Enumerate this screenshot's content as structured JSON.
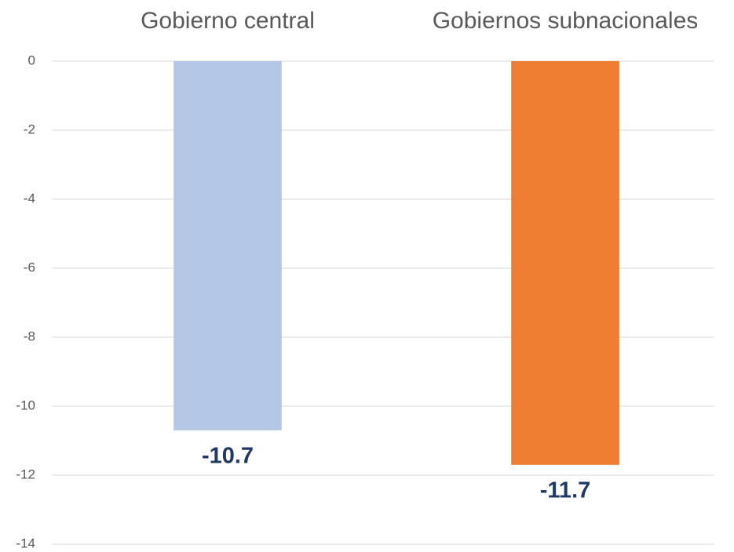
{
  "chart_data": {
    "type": "bar",
    "categories": [
      "Gobierno central",
      "Gobiernos subnacionales"
    ],
    "values": [
      -10.7,
      -11.7
    ],
    "colors": [
      "#b4c7e7",
      "#ed7d31"
    ],
    "ylim": [
      -14,
      0
    ],
    "yticks": [
      0,
      -2,
      -4,
      -6,
      -8,
      -10,
      -12,
      -14
    ],
    "grid": true
  }
}
